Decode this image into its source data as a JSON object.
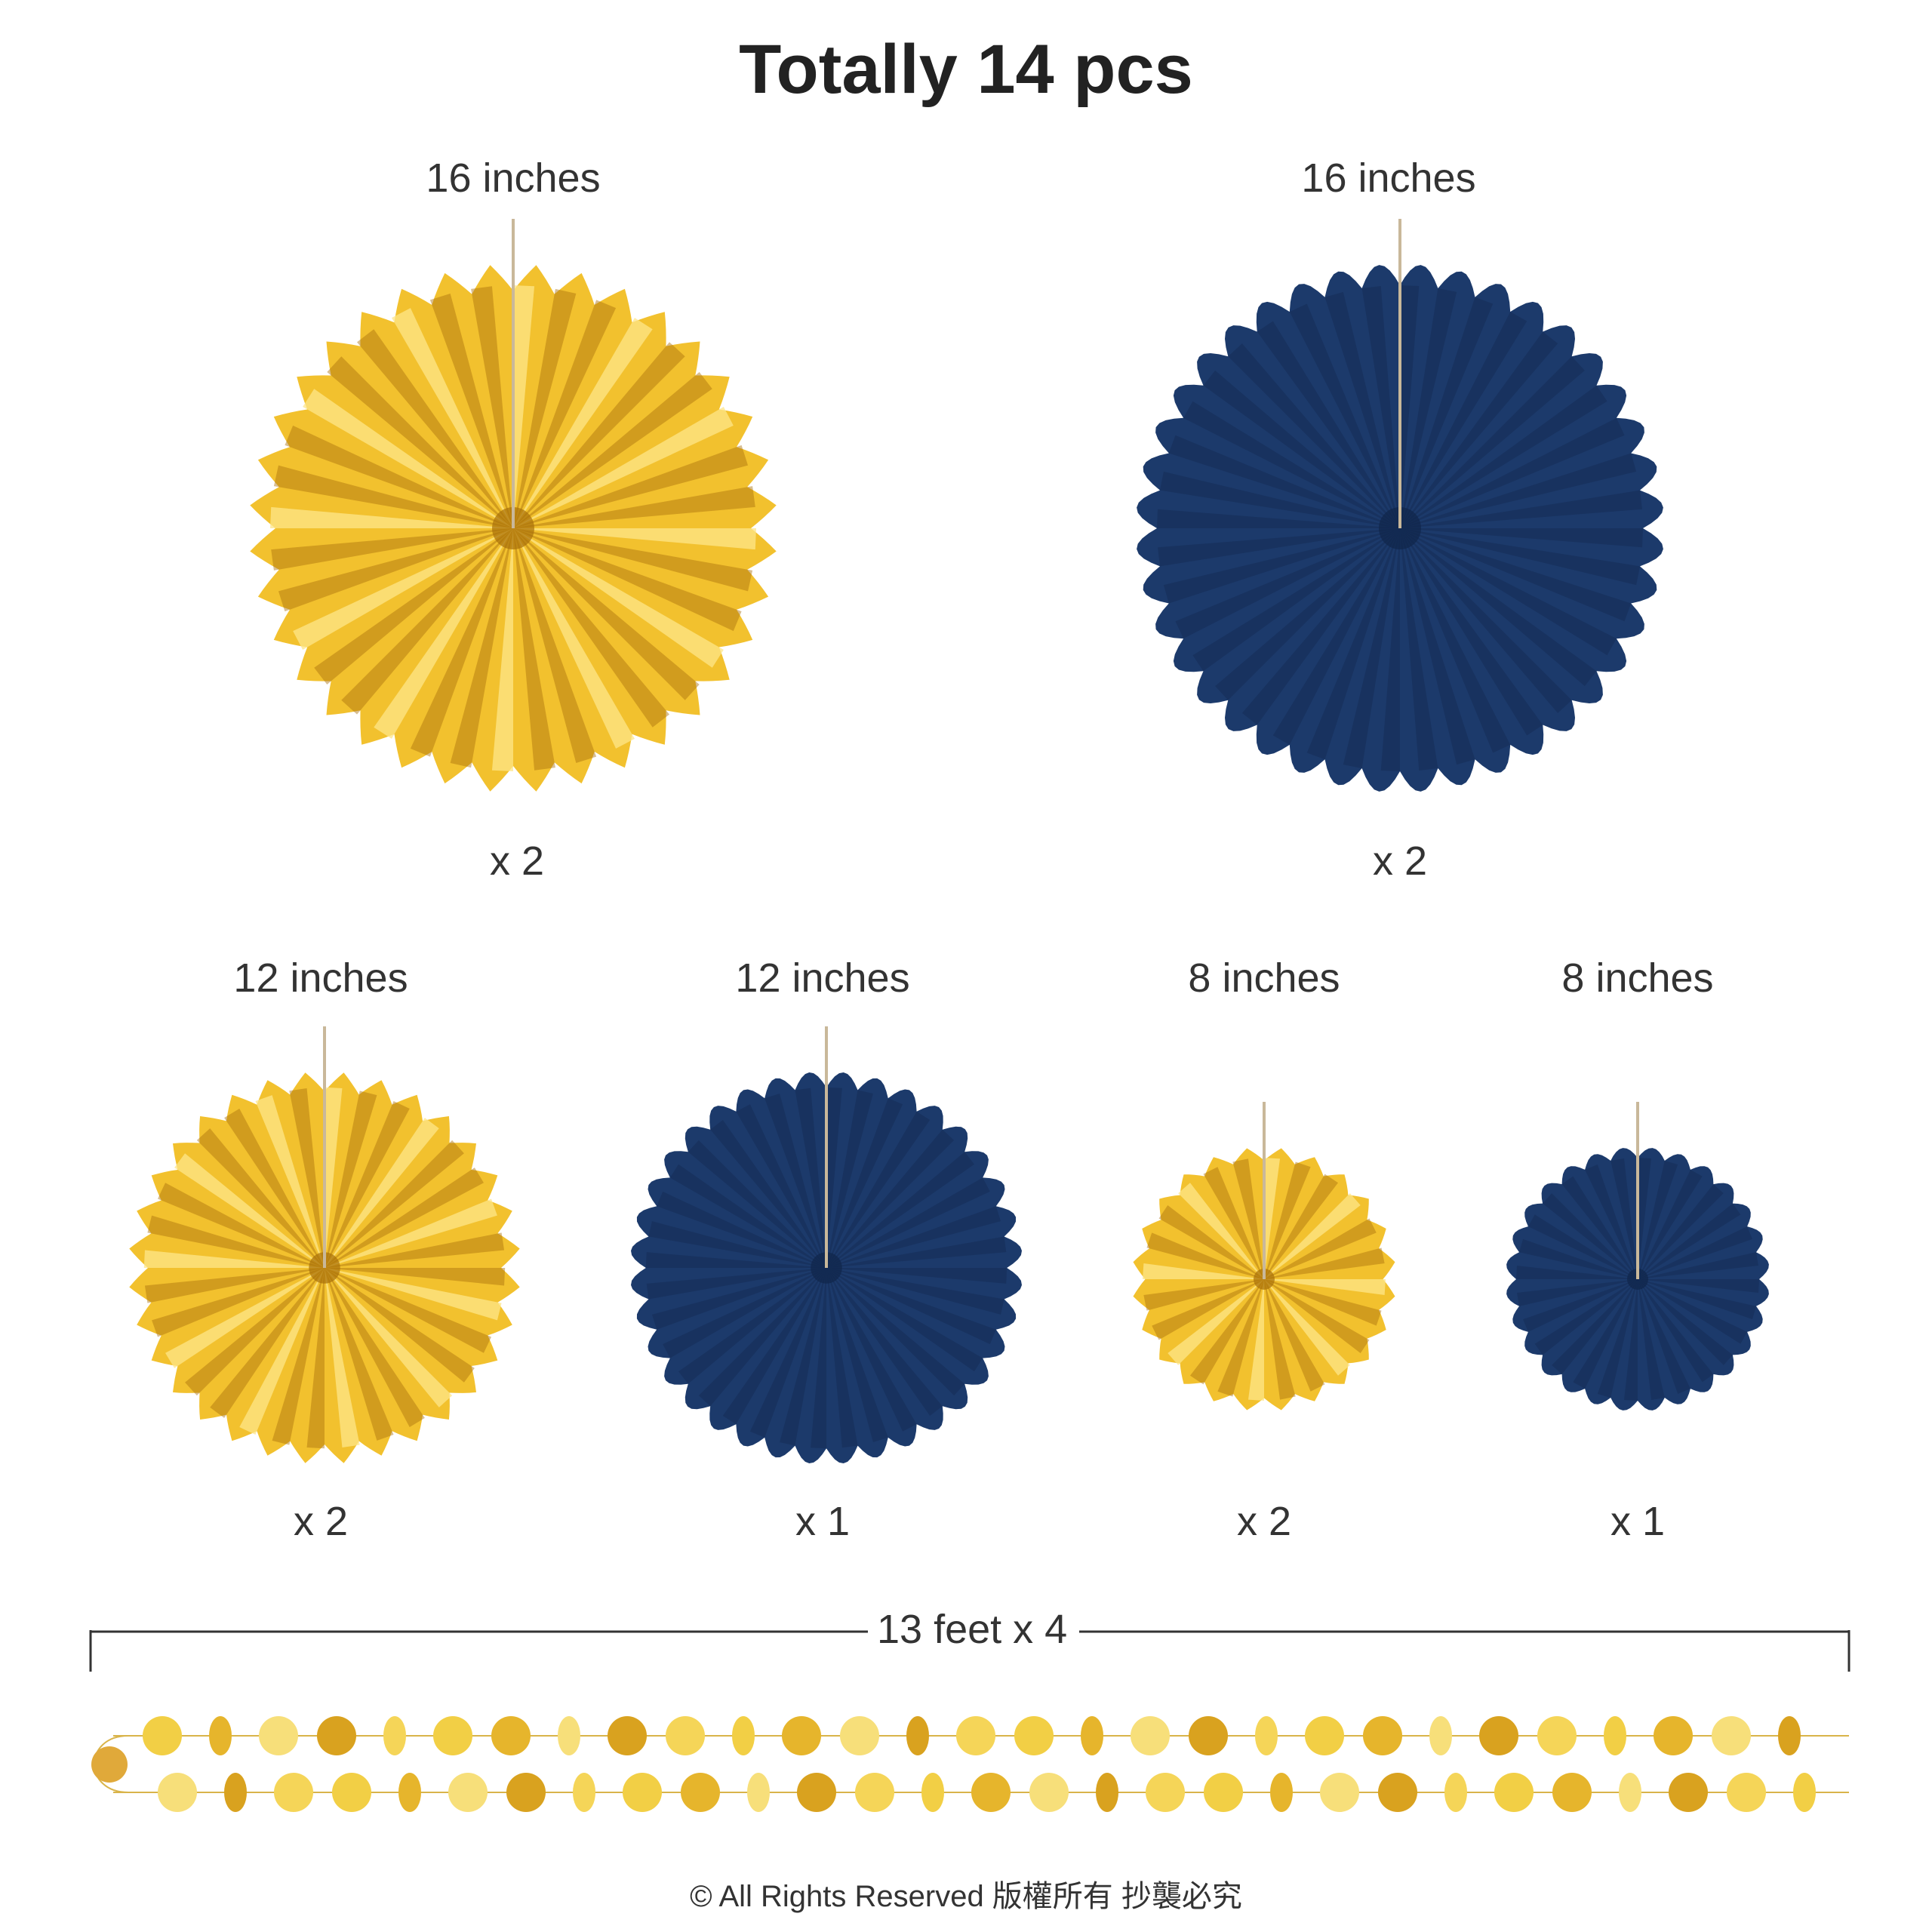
{
  "title": "Totally 14 pcs",
  "colors": {
    "gold": "#f2c12e",
    "gold_light": "#fde68a",
    "gold_dark": "#a86f0a",
    "navy": "#1c3a6b",
    "navy_dark": "#10254a"
  },
  "items": [
    {
      "size": "16 inches",
      "qty": "x 2",
      "color": "gold"
    },
    {
      "size": "16 inches",
      "qty": "x 2",
      "color": "navy"
    },
    {
      "size": "12 inches",
      "qty": "x 2",
      "color": "gold"
    },
    {
      "size": "12 inches",
      "qty": "x 1",
      "color": "navy"
    },
    {
      "size": "8 inches",
      "qty": "x 2",
      "color": "gold"
    },
    {
      "size": "8 inches",
      "qty": "x 1",
      "color": "navy"
    }
  ],
  "garland": {
    "label": "13 feet x 4"
  },
  "footer": "© All Rights Reserved 版權所有 抄襲必究"
}
